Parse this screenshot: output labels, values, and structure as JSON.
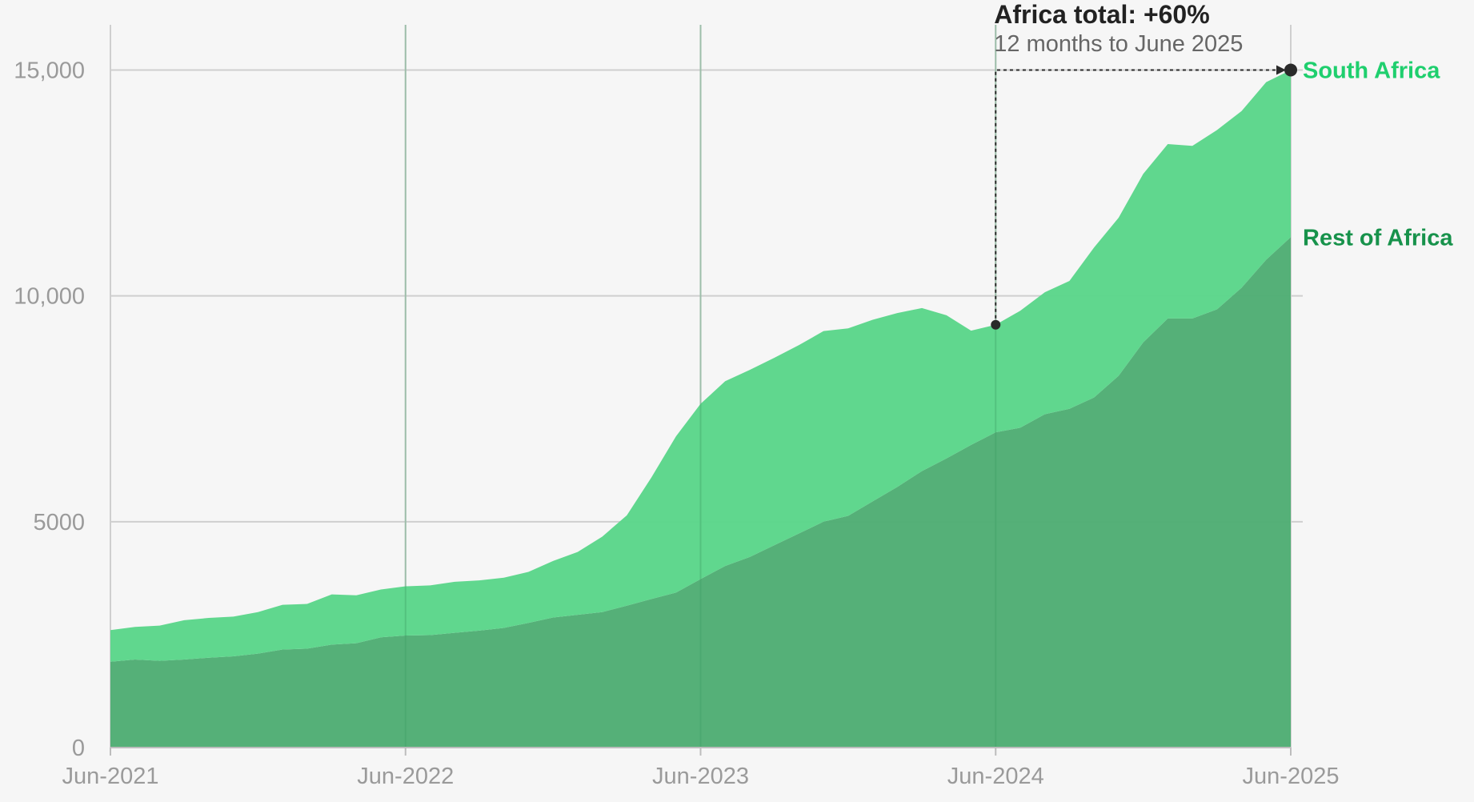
{
  "chart_data": {
    "type": "area",
    "stacked": true,
    "x": [
      "2021-06",
      "2021-07",
      "2021-08",
      "2021-09",
      "2021-10",
      "2021-11",
      "2021-12",
      "2022-01",
      "2022-02",
      "2022-03",
      "2022-04",
      "2022-05",
      "2022-06",
      "2022-07",
      "2022-08",
      "2022-09",
      "2022-10",
      "2022-11",
      "2022-12",
      "2023-01",
      "2023-02",
      "2023-03",
      "2023-04",
      "2023-05",
      "2023-06",
      "2023-07",
      "2023-08",
      "2023-09",
      "2023-10",
      "2023-11",
      "2023-12",
      "2024-01",
      "2024-02",
      "2024-03",
      "2024-04",
      "2024-05",
      "2024-06",
      "2024-07",
      "2024-08",
      "2024-09",
      "2024-10",
      "2024-11",
      "2024-12",
      "2025-01",
      "2025-02",
      "2025-03",
      "2025-04",
      "2025-05",
      "2025-06"
    ],
    "x_ticks": [
      "Jun-2021",
      "Jun-2022",
      "Jun-2023",
      "Jun-2024",
      "Jun-2025"
    ],
    "y_ticks": [
      "0",
      "5000",
      "10,000",
      "15,000"
    ],
    "ylim": [
      0,
      16000
    ],
    "grid": true,
    "series": [
      {
        "name": "Rest of Africa",
        "color": "#4fad74",
        "values": [
          1900,
          1950,
          1920,
          1950,
          1990,
          2020,
          2080,
          2170,
          2190,
          2280,
          2310,
          2440,
          2480,
          2490,
          2540,
          2590,
          2650,
          2760,
          2880,
          2940,
          3000,
          3140,
          3290,
          3430,
          3730,
          4020,
          4220,
          4480,
          4740,
          5000,
          5130,
          5450,
          5770,
          6120,
          6400,
          6700,
          6980,
          7080,
          7380,
          7500,
          7750,
          8230,
          8970,
          9500,
          9500,
          9700,
          10180,
          10800,
          11300
        ],
        "label_y": 11300
      },
      {
        "name": "South Africa",
        "color": "#5bd68a",
        "values": [
          700,
          720,
          780,
          870,
          880,
          880,
          920,
          990,
          990,
          1110,
          1060,
          1060,
          1090,
          1100,
          1130,
          1110,
          1110,
          1130,
          1250,
          1390,
          1670,
          2000,
          2690,
          3460,
          3880,
          4090,
          4140,
          4150,
          4170,
          4220,
          4150,
          4020,
          3850,
          3610,
          3170,
          2530,
          2380,
          2590,
          2700,
          2830,
          3320,
          3500,
          3730,
          3860,
          3820,
          3970,
          3910,
          3930,
          3700
        ],
        "label_y": 15000
      }
    ],
    "annotation": {
      "title": "Africa total: +60%",
      "subtitle": "12 months to June 2025",
      "from": {
        "x": "2024-06",
        "y": 9360
      },
      "to": {
        "x": "2025-06",
        "y": 15000
      }
    }
  },
  "colors": {
    "background": "#f6f6f6",
    "grid": "#cfcfcf",
    "tick_text": "#9a9a9a",
    "annotation": "#2a2a2a",
    "south_africa_label": "#1fcf6e",
    "rest_of_africa_label": "#17924b"
  }
}
